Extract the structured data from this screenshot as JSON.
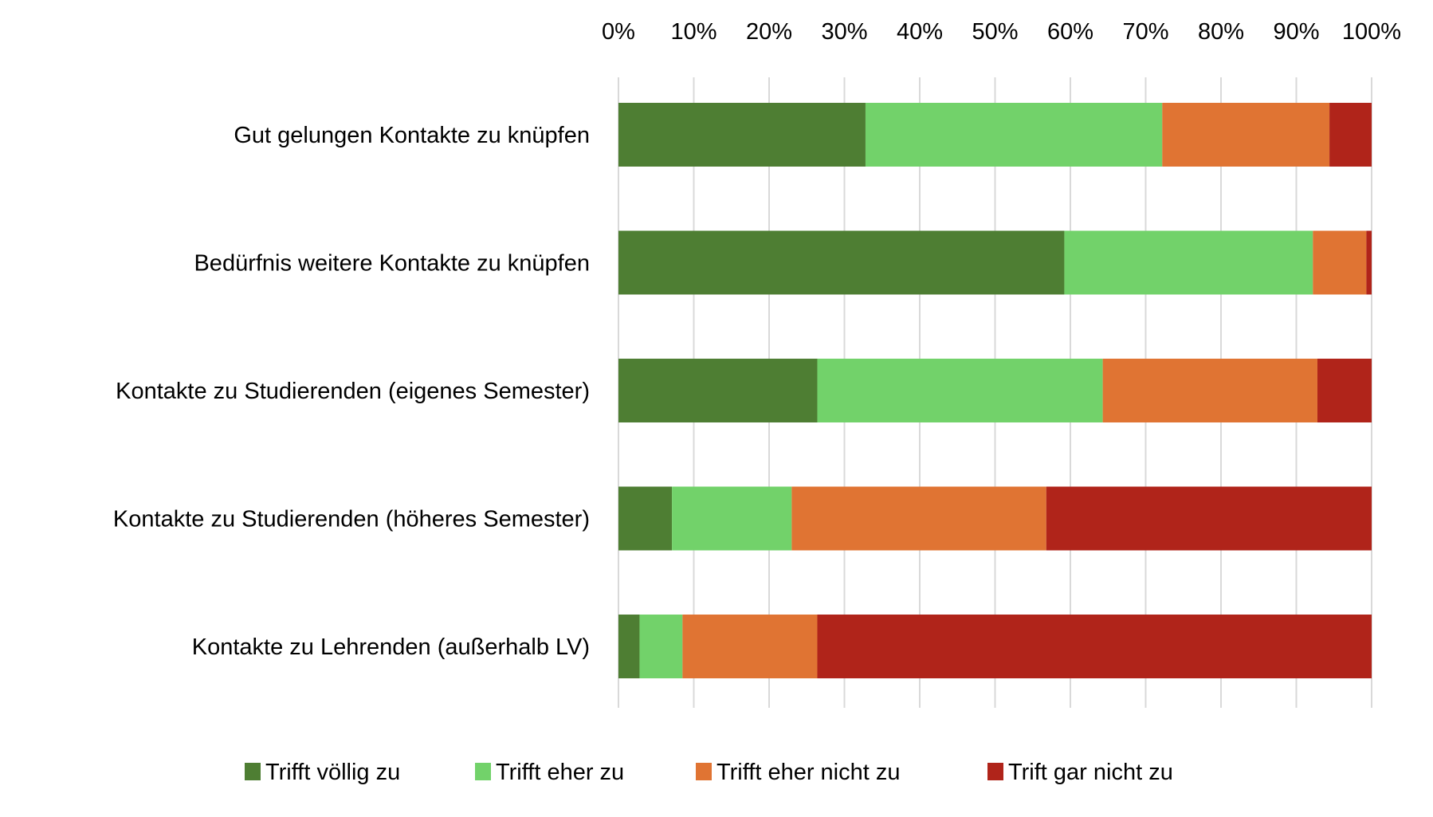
{
  "chart_data": {
    "type": "bar",
    "orientation": "horizontal",
    "stacked": "percent",
    "title": "",
    "xlabel": "",
    "ylabel": "",
    "xlim": [
      0,
      100
    ],
    "x_ticks": [
      "0%",
      "10%",
      "20%",
      "30%",
      "40%",
      "50%",
      "60%",
      "70%",
      "80%",
      "90%",
      "100%"
    ],
    "x_axis_position": "top",
    "grid": true,
    "legend_position": "bottom",
    "categories": [
      "Gut gelungen Kontakte zu knüpfen",
      "Bedürfnis weitere Kontakte zu knüpfen",
      "Kontakte zu Studierenden (eigenes Semester)",
      "Kontakte zu Studierenden (höheres Semester)",
      "Kontakte zu Lehrenden (außerhalb LV)"
    ],
    "series": [
      {
        "name": "Trifft völlig zu",
        "color": "#4e7e33",
        "values": [
          32.8,
          59.2,
          26.4,
          7.1,
          2.8
        ]
      },
      {
        "name": "Trifft eher zu",
        "color": "#72d26a",
        "values": [
          39.4,
          33.0,
          37.9,
          15.9,
          5.7
        ]
      },
      {
        "name": "Trifft eher nicht zu",
        "color": "#e07433",
        "values": [
          22.2,
          7.1,
          28.5,
          33.8,
          17.9
        ]
      },
      {
        "name": "Trift gar nicht zu",
        "color": "#b0241a",
        "values": [
          5.6,
          0.7,
          7.2,
          43.2,
          73.6
        ]
      }
    ]
  }
}
